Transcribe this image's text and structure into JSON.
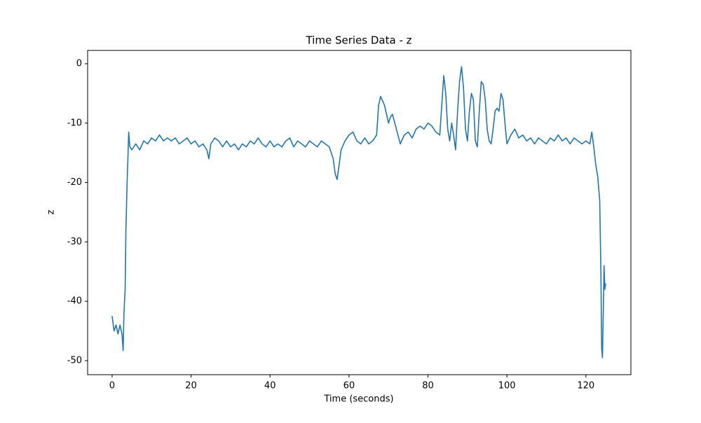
{
  "chart_data": {
    "type": "line",
    "title": "Time Series Data - z",
    "xlabel": "Time (seconds)",
    "ylabel": "z",
    "x": [
      0,
      0.5,
      1,
      1.5,
      2,
      2.5,
      2.8,
      3,
      3.3,
      3.5,
      3.8,
      4,
      4.2,
      4.5,
      5,
      6,
      7,
      8,
      9,
      10,
      11,
      12,
      13,
      14,
      15,
      16,
      17,
      18,
      19,
      20,
      21,
      22,
      23,
      24,
      24.5,
      25,
      26,
      27,
      28,
      29,
      30,
      31,
      32,
      33,
      34,
      35,
      36,
      37,
      38,
      39,
      40,
      41,
      42,
      43,
      44,
      45,
      46,
      47,
      48,
      49,
      50,
      51,
      52,
      53,
      54,
      55,
      56,
      56.5,
      57,
      57.5,
      58,
      59,
      60,
      61,
      62,
      63,
      64,
      65,
      66,
      67,
      67.5,
      68,
      69,
      70,
      70.5,
      71,
      72,
      73,
      74,
      75,
      76,
      77,
      78,
      79,
      80,
      81,
      82,
      83,
      83.5,
      84,
      84.5,
      85,
      85.5,
      86,
      86.5,
      87,
      87.5,
      88,
      88.5,
      89,
      89.5,
      90,
      90.5,
      91,
      91.5,
      92,
      92.5,
      93,
      93.5,
      94,
      94.5,
      95,
      95.5,
      96,
      96.5,
      97,
      97.5,
      98,
      98.5,
      99,
      99.5,
      100,
      101,
      102,
      103,
      104,
      105,
      106,
      107,
      108,
      109,
      110,
      111,
      112,
      113,
      114,
      115,
      116,
      117,
      118,
      119,
      120,
      121,
      121.5,
      122,
      122.5,
      123,
      123.5,
      123.8,
      124,
      124.2,
      124.4,
      124.6,
      124.8,
      125
    ],
    "series": [
      {
        "name": "z",
        "color": "#1f77b4",
        "values": [
          -42.5,
          -45,
          -44,
          -45.5,
          -44,
          -45.5,
          -48.3,
          -42,
          -38,
          -28,
          -20,
          -16,
          -11.5,
          -14,
          -14.5,
          -13.5,
          -14.5,
          -13,
          -13.5,
          -12.5,
          -13,
          -12,
          -13,
          -12.5,
          -13,
          -12.5,
          -13.5,
          -13,
          -12.5,
          -13.5,
          -13,
          -14,
          -13.5,
          -14.5,
          -16,
          -13.5,
          -12.5,
          -13,
          -14,
          -13,
          -14,
          -13.5,
          -14.5,
          -13.5,
          -14,
          -13,
          -13.5,
          -12.5,
          -13.5,
          -14,
          -13,
          -14,
          -13.5,
          -14,
          -13,
          -12.5,
          -14,
          -13,
          -13.5,
          -14,
          -13,
          -13.5,
          -14,
          -13,
          -13.5,
          -14,
          -16,
          -18.5,
          -19.5,
          -17,
          -14.5,
          -13,
          -12,
          -11.5,
          -13,
          -13.5,
          -12.5,
          -13.5,
          -13,
          -12,
          -7,
          -5.5,
          -7,
          -10,
          -9,
          -8.5,
          -11,
          -13.5,
          -12,
          -11.5,
          -12.5,
          -11,
          -10.5,
          -11,
          -10,
          -10.5,
          -11.5,
          -12,
          -7,
          -2,
          -5,
          -11,
          -13,
          -10,
          -12,
          -14.5,
          -8,
          -3,
          -0.5,
          -4,
          -11,
          -13,
          -8,
          -5,
          -6,
          -13,
          -14,
          -8,
          -3,
          -3.5,
          -6,
          -11,
          -13,
          -13.5,
          -11,
          -8,
          -7.5,
          -8,
          -5,
          -6,
          -10,
          -13.5,
          -12,
          -11,
          -12.5,
          -12,
          -13,
          -12.5,
          -13.5,
          -12.5,
          -13,
          -13.5,
          -12.5,
          -13,
          -12,
          -13,
          -12.5,
          -13.5,
          -12.5,
          -13,
          -13.5,
          -13,
          -13.5,
          -11.5,
          -14,
          -17,
          -19,
          -23,
          -35,
          -48,
          -49.5,
          -42,
          -34,
          -38,
          -37
        ]
      }
    ],
    "xlim": [
      -6.2,
      131.4
    ],
    "ylim": [
      -52.36,
      2.24
    ],
    "xticks": [
      0,
      20,
      40,
      60,
      80,
      100,
      120
    ],
    "yticks": [
      -50,
      -40,
      -30,
      -20,
      -10,
      0
    ]
  }
}
